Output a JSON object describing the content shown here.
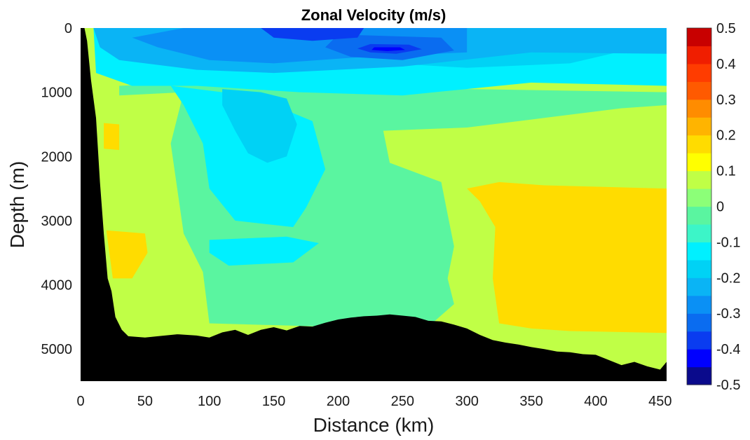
{
  "chart_data": {
    "type": "heatmap",
    "title": "Zonal Velocity (m/s)",
    "xlabel": "Distance (km)",
    "ylabel": "Depth (m)",
    "xlim": [
      0,
      455
    ],
    "ylim": [
      5500,
      0
    ],
    "y_reversed": true,
    "x_ticks": [
      "0",
      "50",
      "100",
      "150",
      "200",
      "250",
      "300",
      "350",
      "400",
      "450"
    ],
    "x_tick_values": [
      0,
      50,
      100,
      150,
      200,
      250,
      300,
      350,
      400,
      450
    ],
    "y_ticks": [
      "0",
      "1000",
      "2000",
      "3000",
      "4000",
      "5000"
    ],
    "y_tick_values": [
      0,
      1000,
      2000,
      3000,
      4000,
      5000
    ],
    "colorbar": {
      "range": [
        -0.5,
        0.5
      ],
      "ticks": [
        "0.5",
        "0.4",
        "0.3",
        "0.2",
        "0.1",
        "0",
        "-0.1",
        "-0.2",
        "-0.3",
        "-0.4",
        "-0.5"
      ],
      "tick_values": [
        0.5,
        0.4,
        0.3,
        0.2,
        0.1,
        0,
        -0.1,
        -0.2,
        -0.3,
        -0.4,
        -0.5
      ],
      "levels": [
        {
          "from": -0.5,
          "to": -0.45,
          "color": "#0a0a8c"
        },
        {
          "from": -0.45,
          "to": -0.4,
          "color": "#0000ff"
        },
        {
          "from": -0.4,
          "to": -0.35,
          "color": "#0a3cf0"
        },
        {
          "from": -0.35,
          "to": -0.3,
          "color": "#0a6cf0"
        },
        {
          "from": -0.3,
          "to": -0.25,
          "color": "#0a90f5"
        },
        {
          "from": -0.25,
          "to": -0.2,
          "color": "#0ab4f5"
        },
        {
          "from": -0.2,
          "to": -0.15,
          "color": "#00d2f5"
        },
        {
          "from": -0.15,
          "to": -0.1,
          "color": "#00f0ff"
        },
        {
          "from": -0.1,
          "to": -0.05,
          "color": "#3cf5c8"
        },
        {
          "from": -0.05,
          "to": 0,
          "color": "#5af5a0"
        },
        {
          "from": 0,
          "to": 0.05,
          "color": "#8cff78"
        },
        {
          "from": 0.05,
          "to": 0.1,
          "color": "#c0ff46"
        },
        {
          "from": 0.1,
          "to": 0.15,
          "color": "#ffff00"
        },
        {
          "from": 0.15,
          "to": 0.2,
          "color": "#ffdc00"
        },
        {
          "from": 0.2,
          "to": 0.25,
          "color": "#ffb400"
        },
        {
          "from": 0.25,
          "to": 0.3,
          "color": "#ff8c00"
        },
        {
          "from": 0.3,
          "to": 0.35,
          "color": "#ff5a00"
        },
        {
          "from": 0.35,
          "to": 0.4,
          "color": "#ff3c00"
        },
        {
          "from": 0.4,
          "to": 0.45,
          "color": "#f01e00"
        },
        {
          "from": 0.45,
          "to": 0.5,
          "color": "#c80000"
        }
      ]
    },
    "bathymetry": [
      [
        0,
        0
      ],
      [
        3,
        0
      ],
      [
        5,
        200
      ],
      [
        8,
        800
      ],
      [
        12,
        1400
      ],
      [
        15,
        2400
      ],
      [
        18,
        3200
      ],
      [
        21,
        3900
      ],
      [
        24,
        4100
      ],
      [
        27,
        4500
      ],
      [
        32,
        4700
      ],
      [
        37,
        4800
      ],
      [
        50,
        4820
      ],
      [
        60,
        4800
      ],
      [
        75,
        4770
      ],
      [
        90,
        4790
      ],
      [
        100,
        4820
      ],
      [
        110,
        4740
      ],
      [
        120,
        4700
      ],
      [
        130,
        4780
      ],
      [
        140,
        4700
      ],
      [
        150,
        4660
      ],
      [
        160,
        4710
      ],
      [
        170,
        4640
      ],
      [
        180,
        4650
      ],
      [
        190,
        4590
      ],
      [
        200,
        4540
      ],
      [
        210,
        4510
      ],
      [
        220,
        4490
      ],
      [
        230,
        4480
      ],
      [
        240,
        4460
      ],
      [
        250,
        4480
      ],
      [
        260,
        4500
      ],
      [
        270,
        4560
      ],
      [
        280,
        4570
      ],
      [
        290,
        4620
      ],
      [
        300,
        4680
      ],
      [
        310,
        4780
      ],
      [
        320,
        4860
      ],
      [
        330,
        4900
      ],
      [
        340,
        4930
      ],
      [
        350,
        4970
      ],
      [
        360,
        5000
      ],
      [
        370,
        5040
      ],
      [
        380,
        5050
      ],
      [
        390,
        5080
      ],
      [
        400,
        5090
      ],
      [
        410,
        5170
      ],
      [
        420,
        5250
      ],
      [
        430,
        5200
      ],
      [
        440,
        5270
      ],
      [
        450,
        5320
      ],
      [
        455,
        5200
      ]
    ],
    "field_regions": [
      {
        "value": 0.05,
        "polygon": [
          [
            0,
            0
          ],
          [
            455,
            0
          ],
          [
            455,
            5500
          ],
          [
            0,
            5500
          ]
        ]
      },
      {
        "value": 0.15,
        "polygon": [
          [
            325,
            2400
          ],
          [
            360,
            2450
          ],
          [
            455,
            2500
          ],
          [
            455,
            4750
          ],
          [
            380,
            4720
          ],
          [
            350,
            4680
          ],
          [
            325,
            4600
          ],
          [
            320,
            3900
          ],
          [
            322,
            3100
          ],
          [
            310,
            2700
          ],
          [
            300,
            2500
          ]
        ]
      },
      {
        "value": 0.15,
        "polygon": [
          [
            330,
            0
          ],
          [
            455,
            0
          ],
          [
            455,
            200
          ],
          [
            380,
            300
          ],
          [
            340,
            220
          ]
        ]
      },
      {
        "value": 0.15,
        "polygon": [
          [
            18,
            1480
          ],
          [
            30,
            1500
          ],
          [
            30,
            1900
          ],
          [
            18,
            1880
          ]
        ]
      },
      {
        "value": 0.15,
        "polygon": [
          [
            20,
            3150
          ],
          [
            50,
            3200
          ],
          [
            52,
            3500
          ],
          [
            40,
            3900
          ],
          [
            25,
            3900
          ]
        ]
      },
      {
        "value": -0.025,
        "polygon": [
          [
            30,
            1050
          ],
          [
            80,
            1000
          ],
          [
            70,
            1800
          ],
          [
            80,
            3200
          ],
          [
            95,
            3800
          ],
          [
            100,
            4600
          ],
          [
            190,
            4650
          ],
          [
            270,
            4650
          ],
          [
            290,
            4300
          ],
          [
            285,
            3900
          ],
          [
            290,
            3400
          ],
          [
            285,
            2900
          ],
          [
            280,
            2400
          ],
          [
            240,
            2100
          ],
          [
            235,
            1600
          ],
          [
            300,
            1550
          ],
          [
            360,
            1400
          ],
          [
            420,
            1250
          ],
          [
            455,
            1200
          ],
          [
            455,
            1000
          ],
          [
            300,
            950
          ],
          [
            150,
            800
          ],
          [
            80,
            850
          ],
          [
            30,
            900
          ]
        ]
      },
      {
        "value": -0.125,
        "polygon": [
          [
            10,
            0
          ],
          [
            455,
            0
          ],
          [
            455,
            900
          ],
          [
            350,
            850
          ],
          [
            250,
            1050
          ],
          [
            170,
            1000
          ],
          [
            90,
            900
          ],
          [
            40,
            900
          ],
          [
            12,
            700
          ]
        ]
      },
      {
        "value": -0.125,
        "polygon": [
          [
            70,
            900
          ],
          [
            110,
            1000
          ],
          [
            150,
            1200
          ],
          [
            180,
            1450
          ],
          [
            190,
            2200
          ],
          [
            175,
            2800
          ],
          [
            165,
            3100
          ],
          [
            120,
            3000
          ],
          [
            100,
            2500
          ],
          [
            95,
            1800
          ],
          [
            80,
            1200
          ]
        ]
      },
      {
        "value": -0.125,
        "polygon": [
          [
            100,
            3300
          ],
          [
            160,
            3250
          ],
          [
            185,
            3350
          ],
          [
            165,
            3650
          ],
          [
            115,
            3700
          ],
          [
            100,
            3500
          ]
        ]
      },
      {
        "value": -0.175,
        "polygon": [
          [
            110,
            950
          ],
          [
            140,
            1000
          ],
          [
            160,
            1100
          ],
          [
            168,
            1500
          ],
          [
            160,
            2000
          ],
          [
            145,
            2100
          ],
          [
            130,
            1950
          ],
          [
            120,
            1600
          ],
          [
            110,
            1200
          ]
        ]
      },
      {
        "value": -0.175,
        "polygon": [
          [
            230,
            100
          ],
          [
            330,
            0
          ],
          [
            455,
            50
          ],
          [
            455,
            200
          ],
          [
            380,
            550
          ],
          [
            300,
            620
          ],
          [
            240,
            550
          ],
          [
            180,
            350
          ]
        ]
      },
      {
        "value": -0.225,
        "polygon": [
          [
            10,
            0
          ],
          [
            455,
            0
          ],
          [
            455,
            400
          ],
          [
            350,
            380
          ],
          [
            250,
            600
          ],
          [
            150,
            700
          ],
          [
            90,
            650
          ],
          [
            30,
            500
          ],
          [
            15,
            300
          ]
        ]
      },
      {
        "value": -0.275,
        "polygon": [
          [
            80,
            0
          ],
          [
            300,
            0
          ],
          [
            300,
            380
          ],
          [
            220,
            450
          ],
          [
            150,
            550
          ],
          [
            100,
            500
          ],
          [
            60,
            300
          ],
          [
            40,
            150
          ]
        ]
      },
      {
        "value": -0.325,
        "polygon": [
          [
            200,
            100
          ],
          [
            280,
            150
          ],
          [
            290,
            350
          ],
          [
            250,
            500
          ],
          [
            210,
            450
          ],
          [
            190,
            300
          ]
        ]
      },
      {
        "value": -0.375,
        "polygon": [
          [
            140,
            0
          ],
          [
            220,
            0
          ],
          [
            215,
            150
          ],
          [
            180,
            200
          ],
          [
            150,
            150
          ]
        ]
      },
      {
        "value": -0.375,
        "polygon": [
          [
            225,
            250
          ],
          [
            255,
            260
          ],
          [
            265,
            330
          ],
          [
            245,
            400
          ],
          [
            225,
            380
          ],
          [
            215,
            320
          ]
        ]
      },
      {
        "value": -0.425,
        "polygon": [
          [
            228,
            300
          ],
          [
            248,
            300
          ],
          [
            252,
            340
          ],
          [
            238,
            360
          ],
          [
            226,
            340
          ]
        ]
      }
    ]
  }
}
